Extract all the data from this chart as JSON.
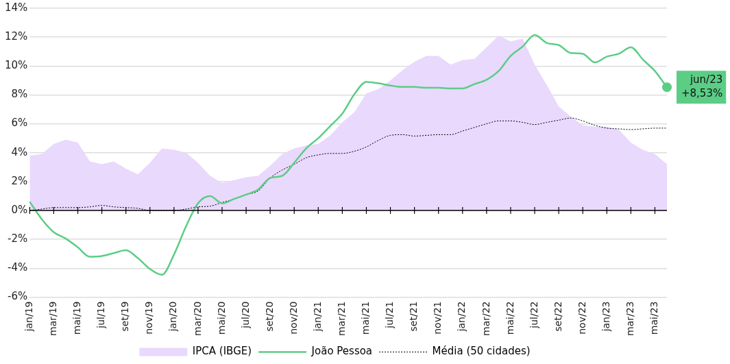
{
  "chart_data": {
    "type": "area",
    "categories": [
      "jan/19",
      null,
      "mar/19",
      null,
      "mai/19",
      null,
      "jul/19",
      null,
      "set/19",
      null,
      "nov/19",
      null,
      "jan/20",
      null,
      "mar/20",
      null,
      "mai/20",
      null,
      "jul/20",
      null,
      "set/20",
      null,
      "nov/20",
      null,
      "jan/21",
      null,
      "mar/21",
      null,
      "mai/21",
      null,
      "jul/21",
      null,
      "set/21",
      null,
      "nov/21",
      null,
      "jan/22",
      null,
      "mar/22",
      null,
      "mai/22",
      null,
      "jul/22",
      null,
      "set/22",
      null,
      "nov/22",
      null,
      "jan/23",
      null,
      "mar/23",
      null,
      "mai/23",
      null
    ],
    "series": [
      {
        "name": "IPCA (IBGE)",
        "color": "#e9d9fd",
        "values": [
          3.8,
          3.9,
          4.6,
          4.9,
          4.7,
          3.4,
          3.2,
          3.4,
          2.9,
          2.5,
          3.3,
          4.3,
          4.2,
          4.0,
          3.3,
          2.4,
          1.9,
          2.1,
          2.3,
          2.4,
          3.1,
          3.9,
          4.3,
          4.5,
          4.6,
          5.2,
          6.1,
          6.8,
          8.1,
          8.4,
          9.0,
          9.7,
          10.3,
          10.7,
          10.7,
          10.1,
          10.4,
          10.5,
          11.3,
          12.1,
          11.7,
          11.9,
          10.1,
          8.7,
          7.2,
          6.5,
          5.9,
          5.8,
          5.8,
          5.6,
          4.7,
          4.2,
          3.9,
          3.2
        ]
      },
      {
        "name": "João Pessoa",
        "type": "line",
        "color": "#5ccd85",
        "line_style": "solid",
        "values": [
          0.6,
          -0.6,
          -1.5,
          -1.95,
          -2.55,
          -3.2,
          -3.15,
          -2.95,
          -2.75,
          -3.3,
          -4.05,
          -4.45,
          -3.05,
          -1.1,
          0.5,
          1.0,
          0.5,
          0.8,
          1.1,
          1.45,
          2.25,
          2.4,
          3.3,
          4.3,
          5.0,
          5.85,
          6.7,
          8.05,
          8.9,
          8.8,
          8.65,
          8.55,
          8.55,
          8.5,
          8.5,
          8.45,
          8.45,
          8.75,
          9.05,
          9.65,
          10.7,
          11.35,
          12.15,
          11.6,
          11.45,
          10.9,
          10.85,
          10.25,
          10.65,
          10.85,
          11.3,
          10.45,
          9.65,
          8.53
        ]
      },
      {
        "name": "Média (50 cidades)",
        "type": "line",
        "color": "#000000",
        "line_style": "dotted",
        "values": [
          0.0,
          0.1,
          0.2,
          0.2,
          0.2,
          0.25,
          0.35,
          0.25,
          0.2,
          0.15,
          0.0,
          0.0,
          0.0,
          0.1,
          0.25,
          0.3,
          0.55,
          0.8,
          1.1,
          1.35,
          2.25,
          2.8,
          3.2,
          3.65,
          3.85,
          3.95,
          3.95,
          4.1,
          4.4,
          4.85,
          5.2,
          5.25,
          5.15,
          5.2,
          5.25,
          5.25,
          5.5,
          5.75,
          6.0,
          6.2,
          6.2,
          6.1,
          5.95,
          6.1,
          6.25,
          6.4,
          6.2,
          5.9,
          5.7,
          5.65,
          5.6,
          5.65,
          5.7,
          5.7
        ]
      }
    ],
    "ylim": [
      -6,
      14
    ],
    "yticks": [
      {
        "value": -6,
        "label": "-6%"
      },
      {
        "value": -4,
        "label": "-4%"
      },
      {
        "value": -2,
        "label": "-2%"
      },
      {
        "value": 0,
        "label": "0%"
      },
      {
        "value": 2,
        "label": "2%"
      },
      {
        "value": 4,
        "label": "4%"
      },
      {
        "value": 6,
        "label": "6%"
      },
      {
        "value": 8,
        "label": "8%"
      },
      {
        "value": 10,
        "label": "10%"
      },
      {
        "value": 12,
        "label": "12%"
      },
      {
        "value": 14,
        "label": "14%"
      }
    ],
    "grid": "y",
    "legend": "bottom",
    "marker": "none",
    "annotations": [
      "jun/23\n+8,53%"
    ]
  }
}
